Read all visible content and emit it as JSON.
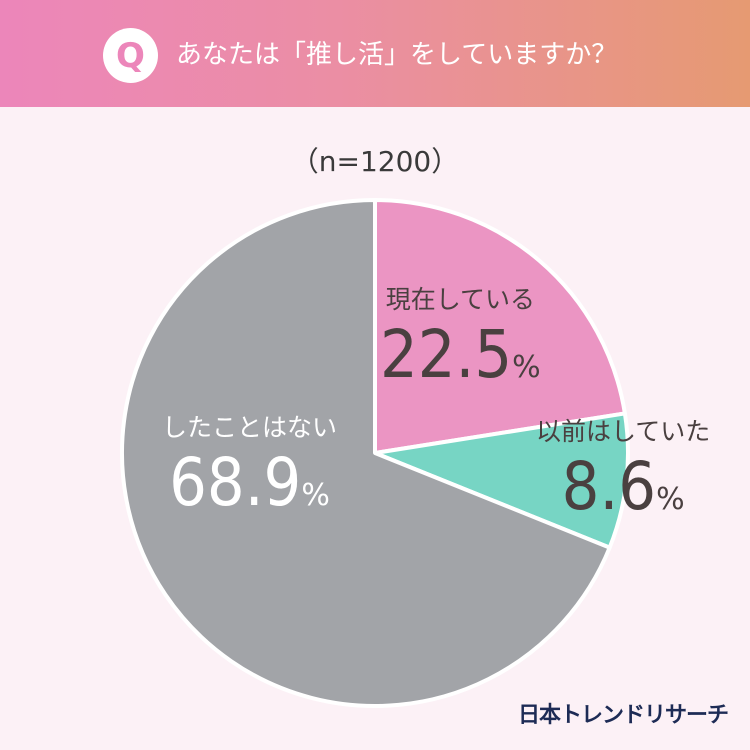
{
  "header": {
    "badge": "Q",
    "question": "あなたは「推し活」をしていますか？"
  },
  "sample_size": "（n=1200）",
  "chart_data": {
    "type": "pie",
    "slices": [
      {
        "label": "現在している",
        "value": 22.5,
        "value_text": "22.5",
        "unit": "%",
        "color": "#eb95c3"
      },
      {
        "label": "以前はしていた",
        "value": 8.6,
        "value_text": "8.6",
        "unit": "%",
        "color": "#77d5c4"
      },
      {
        "label": "したことはない",
        "value": 68.9,
        "value_text": "68.9",
        "unit": "%",
        "color": "#a2a4a8"
      }
    ],
    "start": "12 o'clock",
    "direction": "clockwise"
  },
  "brand": "日本トレンドリサーチ"
}
